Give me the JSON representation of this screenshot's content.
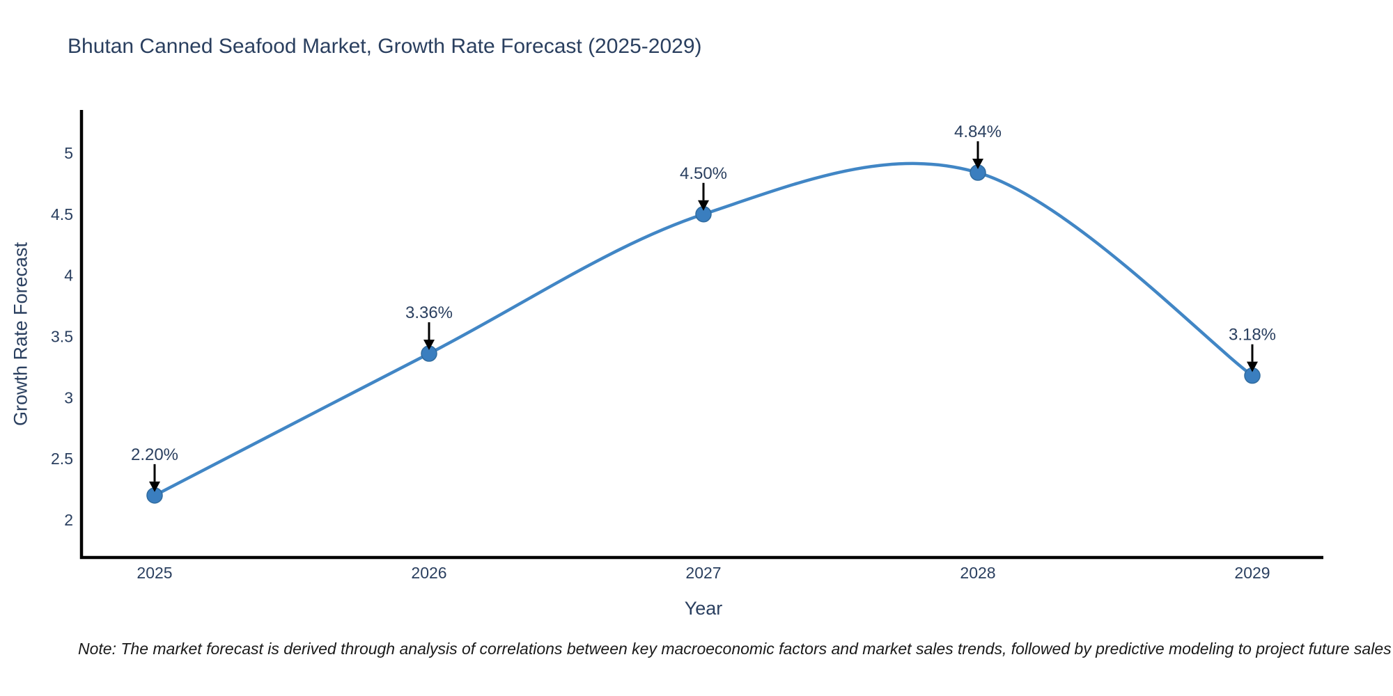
{
  "page": {
    "background": "#ffffff"
  },
  "chart_data": {
    "type": "line",
    "title": "Bhutan Canned Seafood Market, Growth Rate Forecast (2025-2029)",
    "xlabel": "Year",
    "ylabel": "Growth Rate Forecast",
    "categories": [
      "2025",
      "2026",
      "2027",
      "2028",
      "2029"
    ],
    "series": [
      {
        "name": "Growth Rate Forecast",
        "values": [
          2.2,
          3.36,
          4.5,
          4.84,
          3.18
        ]
      }
    ],
    "point_labels": [
      "2.20%",
      "3.36%",
      "4.50%",
      "4.84%",
      "3.18%"
    ],
    "yticks": [
      "2",
      "2.5",
      "3",
      "3.5",
      "4",
      "4.5",
      "5"
    ],
    "ytick_values": [
      2,
      2.5,
      3,
      3.5,
      4,
      4.5,
      5
    ],
    "ylim": [
      1.69,
      5.37
    ],
    "grid": false,
    "legend": "none",
    "line_shape": "spline",
    "colors": {
      "line": "#4186c5",
      "marker": "#3a7ebf",
      "marker_edge": "#306b9e",
      "axis_line": "#000000",
      "text": "#2a3f5f",
      "annotation_text": "#2a3f5f",
      "annotation_arrow": "#000000",
      "note_text": "#1a1a1a"
    },
    "note": "Note: The market forecast is derived through analysis of correlations between key macroeconomic factors and market sales trends, followed by predictive modeling to project future sales"
  }
}
